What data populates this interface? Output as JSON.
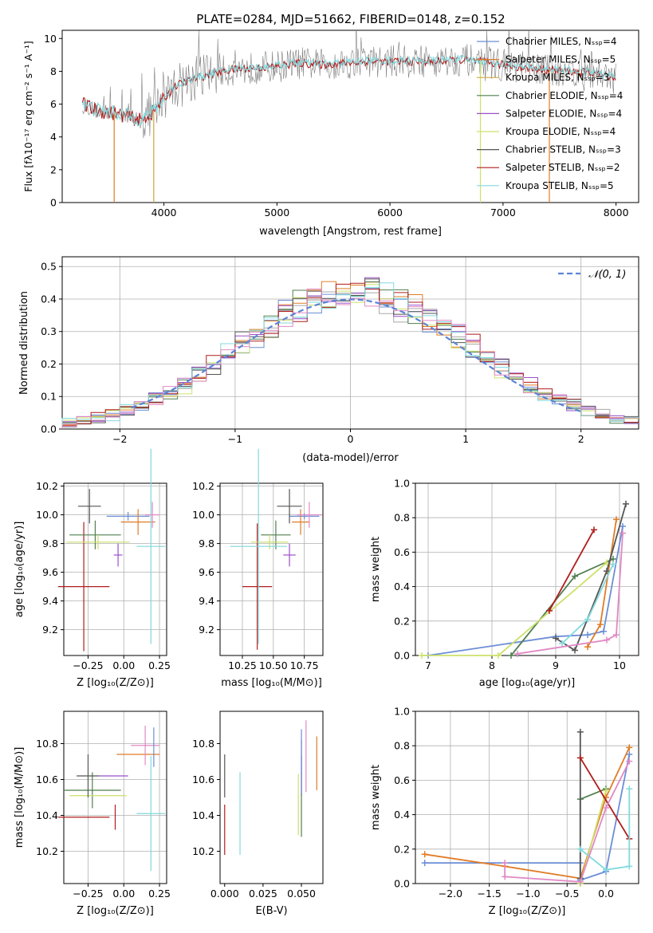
{
  "figure": {
    "title": "PLATE=0284, MJD=51662, FIBERID=0148, z=0.152",
    "series_colors": [
      "#6b8ed6",
      "#e07c26",
      "#a8a8a8",
      "#4f7f4f",
      "#9b4fc9",
      "#cde06a",
      "#555555",
      "#b01c1c",
      "#80d9dd"
    ],
    "pink_color": "#e089c4"
  },
  "chart_data": [
    {
      "type": "line",
      "title": "PLATE=0284, MJD=51662, FIBERID=0148, z=0.152",
      "xlabel": "wavelength [Angstrom, rest frame]",
      "ylabel": "Flux [f_λ 10^-17 erg cm^-2 s^-1 A^-1]",
      "xlim": [
        3100,
        8200
      ],
      "ylim": [
        0,
        10.5
      ],
      "xticks": [
        4000,
        5000,
        6000,
        7000,
        8000
      ],
      "yticks": [
        0,
        2,
        4,
        6,
        8,
        10
      ],
      "legend_position": "top-right",
      "series": [
        {
          "name": "Chabrier MILES, N_SSP=4",
          "color": "#6b8ed6"
        },
        {
          "name": "Salpeter MILES, N_SSP=5",
          "color": "#e07c26"
        },
        {
          "name": "Kroupa MILES, N_SSP=3",
          "color": "#cda63b"
        },
        {
          "name": "Chabrier ELODIE, N_SSP=4",
          "color": "#4f7f4f"
        },
        {
          "name": "Salpeter ELODIE, N_SSP=4",
          "color": "#9b4fc9"
        },
        {
          "name": "Kroupa ELODIE, N_SSP=4",
          "color": "#cde06a"
        },
        {
          "name": "Chabrier STELIB, N_SSP=3",
          "color": "#555555"
        },
        {
          "name": "Salpeter STELIB, N_SSP=2",
          "color": "#b01c1c"
        },
        {
          "name": "Kroupa STELIB, N_SSP=5",
          "color": "#80d9dd"
        }
      ],
      "continuum": {
        "x": [
          3280,
          3400,
          3500,
          3600,
          3700,
          3800,
          3900,
          4000,
          4100,
          4200,
          4400,
          4600,
          4800,
          5000,
          5200,
          5400,
          5600,
          5800,
          6000,
          6200,
          6400,
          6600,
          6800,
          7000,
          7200,
          7400,
          7600,
          7800,
          8000
        ],
        "y": [
          6.0,
          5.6,
          5.5,
          5.4,
          5.2,
          5.0,
          5.5,
          6.3,
          7.1,
          7.4,
          7.8,
          8.1,
          8.2,
          8.3,
          8.5,
          8.4,
          8.5,
          8.6,
          8.6,
          8.6,
          8.6,
          8.7,
          8.6,
          8.4,
          8.2,
          8.1,
          8.0,
          7.9,
          7.6
        ]
      }
    },
    {
      "type": "line",
      "xlabel": "(data-model)/error",
      "ylabel": "Normed distribution",
      "xlim": [
        -2.5,
        2.5
      ],
      "ylim": [
        0,
        0.53
      ],
      "xticks": [
        -2,
        -1,
        0,
        1,
        2
      ],
      "yticks": [
        0.0,
        0.1,
        0.2,
        0.3,
        0.4,
        0.5
      ],
      "grid": true,
      "legend": "𝒩(0, 1)",
      "legend_position": "top-right",
      "histogram_bins": 40,
      "gaussian_color": "#5b84d6"
    },
    {
      "type": "scatter",
      "xlabel": "Z [log10(Z/Z⊙)]",
      "ylabel": "age [log10(age/yr)]",
      "xlim": [
        -0.42,
        0.3
      ],
      "ylim": [
        9.02,
        10.22
      ],
      "xticks": [
        -0.25,
        0.0,
        0.25
      ],
      "xtick_labels": [
        "−0.25",
        "0.00",
        "0.25"
      ],
      "yticks": [
        9.2,
        9.4,
        9.6,
        9.8,
        10.0,
        10.2
      ],
      "ytick_labels": [
        "9.2",
        "9.4",
        "9.6",
        "9.8",
        "10.0",
        "10.2"
      ],
      "grid": true,
      "points": [
        {
          "x": -0.28,
          "y": 9.5,
          "xerr": 0.18,
          "yerr": 0.45,
          "c": 7
        },
        {
          "x": -0.2,
          "y": 9.86,
          "xerr": 0.18,
          "yerr": 0.1,
          "c": 3
        },
        {
          "x": -0.18,
          "y": 9.81,
          "xerr": 0.22,
          "yerr": 0.05,
          "c": 5
        },
        {
          "x": -0.04,
          "y": 9.72,
          "xerr": 0.03,
          "yerr": 0.08,
          "c": 4
        },
        {
          "x": 0.03,
          "y": 9.99,
          "xerr": 0.15,
          "yerr": 0.03,
          "c": 0
        },
        {
          "x": -0.24,
          "y": 10.06,
          "xerr": 0.08,
          "yerr": 0.12,
          "c": 6
        },
        {
          "x": 0.1,
          "y": 9.95,
          "xerr": 0.12,
          "yerr": 0.09,
          "c": 1
        },
        {
          "x": 0.19,
          "y": 9.78,
          "xerr": 0.1,
          "yerr": 0.68,
          "c": 8
        },
        {
          "x": 0.2,
          "y": 10.0,
          "xerr": 0.05,
          "yerr": 0.09,
          "c": 9
        }
      ]
    },
    {
      "type": "scatter",
      "xlabel": "mass [log10(M/M⊙)]",
      "xlim": [
        10.07,
        10.9
      ],
      "ylim": [
        9.02,
        10.22
      ],
      "xticks": [
        10.25,
        10.5,
        10.75
      ],
      "xtick_labels": [
        "10.25",
        "10.50",
        "10.75"
      ],
      "yticks": [
        9.2,
        9.4,
        9.6,
        9.8,
        10.0,
        10.2
      ],
      "ytick_labels": [
        "9.2",
        "9.4",
        "9.6",
        "9.8",
        "10.0",
        "10.2"
      ],
      "grid": true,
      "points": [
        {
          "x": 10.37,
          "y": 9.5,
          "xerr": 0.12,
          "yerr": 0.44,
          "c": 7
        },
        {
          "x": 10.52,
          "y": 9.86,
          "xerr": 0.12,
          "yerr": 0.1,
          "c": 3
        },
        {
          "x": 10.47,
          "y": 9.81,
          "xerr": 0.15,
          "yerr": 0.05,
          "c": 5
        },
        {
          "x": 10.63,
          "y": 9.72,
          "xerr": 0.05,
          "yerr": 0.08,
          "c": 4
        },
        {
          "x": 10.75,
          "y": 9.99,
          "xerr": 0.12,
          "yerr": 0.02,
          "c": 0
        },
        {
          "x": 10.63,
          "y": 10.06,
          "xerr": 0.1,
          "yerr": 0.12,
          "c": 6
        },
        {
          "x": 10.72,
          "y": 9.95,
          "xerr": 0.07,
          "yerr": 0.09,
          "c": 1
        },
        {
          "x": 10.38,
          "y": 9.78,
          "xerr": 0.23,
          "yerr": 0.68,
          "c": 8
        },
        {
          "x": 10.79,
          "y": 10.0,
          "xerr": 0.1,
          "yerr": 0.09,
          "c": 9
        }
      ]
    },
    {
      "type": "line",
      "xlabel": "age [log10(age/yr)]",
      "ylabel": "mass weight",
      "xlim": [
        6.8,
        10.3
      ],
      "ylim": [
        0,
        1.0
      ],
      "xticks": [
        7,
        8,
        9,
        10
      ],
      "xtick_labels": [
        "7",
        "8",
        "9",
        "10"
      ],
      "yticks": [
        0.0,
        0.2,
        0.4,
        0.6,
        0.8,
        1.0
      ],
      "ytick_labels": [
        "0.0",
        "0.2",
        "0.4",
        "0.6",
        "0.8",
        "1.0"
      ],
      "grid": true,
      "series": [
        {
          "c": 0,
          "points": [
            [
              7.0,
              0.0
            ],
            [
              9.0,
              0.11
            ],
            [
              9.5,
              0.12
            ],
            [
              9.75,
              0.14
            ],
            [
              10.05,
              0.75
            ]
          ]
        },
        {
          "c": 1,
          "points": [
            [
              9.5,
              0.05
            ],
            [
              9.7,
              0.18
            ],
            [
              9.95,
              0.79
            ]
          ]
        },
        {
          "c": 3,
          "points": [
            [
              8.3,
              0.0
            ],
            [
              9.3,
              0.46
            ],
            [
              9.9,
              0.56
            ]
          ]
        },
        {
          "c": 5,
          "points": [
            [
              6.9,
              0.0
            ],
            [
              8.1,
              0.0
            ],
            [
              9.8,
              0.54
            ]
          ]
        },
        {
          "c": 6,
          "points": [
            [
              9.0,
              0.1
            ],
            [
              9.3,
              0.03
            ],
            [
              9.8,
              0.49
            ],
            [
              10.1,
              0.88
            ]
          ]
        },
        {
          "c": 7,
          "points": [
            [
              8.9,
              0.26
            ],
            [
              9.6,
              0.73
            ]
          ]
        },
        {
          "c": 8,
          "points": [
            [
              9.1,
              0.07
            ],
            [
              9.5,
              0.21
            ],
            [
              9.9,
              0.53
            ]
          ]
        },
        {
          "c": 9,
          "points": [
            [
              8.4,
              0.01
            ],
            [
              9.8,
              0.09
            ],
            [
              9.95,
              0.12
            ],
            [
              10.05,
              0.71
            ]
          ]
        }
      ]
    },
    {
      "type": "scatter",
      "xlabel": "Z [log10(Z/Z⊙)]",
      "ylabel": "mass [log10(M/M⊙)]",
      "xlim": [
        -0.42,
        0.3
      ],
      "ylim": [
        10.02,
        10.98
      ],
      "xticks": [
        -0.25,
        0.0,
        0.25
      ],
      "xtick_labels": [
        "−0.25",
        "0.00",
        "0.25"
      ],
      "yticks": [
        10.2,
        10.4,
        10.6,
        10.8
      ],
      "ytick_labels": [
        "10.2",
        "10.4",
        "10.6",
        "10.8"
      ],
      "grid": true,
      "points": [
        {
          "x": -0.28,
          "y": 10.39,
          "xerr": 0.18,
          "yerr": 0.0,
          "c": 7
        },
        {
          "x": -0.06,
          "y": 10.39,
          "xerr": 0.0,
          "yerr": 0.07,
          "c": 7
        },
        {
          "x": -0.22,
          "y": 10.54,
          "xerr": 0.2,
          "yerr": 0.1,
          "c": 3
        },
        {
          "x": -0.18,
          "y": 10.51,
          "xerr": 0.2,
          "yerr": 0.0,
          "c": 5
        },
        {
          "x": -0.25,
          "y": 10.62,
          "xerr": 0.08,
          "yerr": 0.12,
          "c": 6
        },
        {
          "x": -0.07,
          "y": 10.62,
          "xerr": 0.1,
          "yerr": 0.0,
          "c": 4
        },
        {
          "x": 0.1,
          "y": 10.74,
          "xerr": 0.15,
          "yerr": 0.0,
          "c": 1
        },
        {
          "x": 0.19,
          "y": 10.41,
          "xerr": 0.1,
          "yerr": 0.32,
          "c": 8
        },
        {
          "x": 0.15,
          "y": 10.79,
          "xerr": 0.1,
          "yerr": 0.11,
          "c": 9
        },
        {
          "x": 0.21,
          "y": 10.78,
          "xerr": 0.0,
          "yerr": 0.11,
          "c": 0
        }
      ]
    },
    {
      "type": "scatter",
      "xlabel": "E(B-V)",
      "xlim": [
        -0.003,
        0.064
      ],
      "ylim": [
        10.02,
        10.98
      ],
      "xticks": [
        0.0,
        0.025,
        0.05
      ],
      "xtick_labels": [
        "0.000",
        "0.025",
        "0.050"
      ],
      "yticks": [
        10.2,
        10.4,
        10.6,
        10.8
      ],
      "ytick_labels": [
        "10.2",
        "10.4",
        "10.6",
        "10.8"
      ],
      "grid": false,
      "points": [
        {
          "x": 0.0,
          "y": 10.32,
          "yerr": 0.14,
          "c": 7
        },
        {
          "x": 0.0,
          "y": 10.62,
          "yerr": 0.12,
          "c": 6
        },
        {
          "x": 0.01,
          "y": 10.41,
          "yerr": 0.23,
          "c": 8
        },
        {
          "x": 0.048,
          "y": 10.46,
          "yerr": 0.17,
          "c": 5
        },
        {
          "x": 0.05,
          "y": 10.62,
          "yerr": 0.11,
          "c": 4
        },
        {
          "x": 0.05,
          "y": 10.55,
          "yerr": 0.27,
          "c": 3
        },
        {
          "x": 0.05,
          "y": 10.7,
          "yerr": 0.18,
          "c": 0
        },
        {
          "x": 0.053,
          "y": 10.73,
          "yerr": 0.2,
          "c": 9
        },
        {
          "x": 0.06,
          "y": 10.69,
          "yerr": 0.15,
          "c": 1
        }
      ]
    },
    {
      "type": "line",
      "xlabel": "Z [log10(Z/Z⊙)]",
      "ylabel": "mass weight",
      "xlim": [
        -2.45,
        0.42
      ],
      "ylim": [
        0,
        1.0
      ],
      "xticks": [
        -2.0,
        -1.5,
        -1.0,
        -0.5,
        0.0
      ],
      "xtick_labels": [
        "−2.0",
        "−1.5",
        "−1.0",
        "−0.5",
        "0.0"
      ],
      "yticks": [
        0.0,
        0.2,
        0.4,
        0.6,
        0.8,
        1.0
      ],
      "ytick_labels": [
        "0.0",
        "0.2",
        "0.4",
        "0.6",
        "0.8",
        "1.0"
      ],
      "grid": true,
      "series": [
        {
          "c": 0,
          "points": [
            [
              -2.33,
              0.12
            ],
            [
              -0.33,
              0.12
            ],
            [
              -0.33,
              0.02
            ],
            [
              0.0,
              0.07
            ],
            [
              0.3,
              0.75
            ]
          ]
        },
        {
          "c": 1,
          "points": [
            [
              -2.33,
              0.17
            ],
            [
              -1.3,
              0.1
            ],
            [
              -0.33,
              0.03
            ],
            [
              0.0,
              0.5
            ],
            [
              0.3,
              0.79
            ]
          ]
        },
        {
          "c": 3,
          "points": [
            [
              -0.33,
              0.0
            ],
            [
              -0.33,
              0.49
            ],
            [
              0.0,
              0.55
            ]
          ]
        },
        {
          "c": 5,
          "points": [
            [
              -0.33,
              0.0
            ],
            [
              0.0,
              0.54
            ]
          ]
        },
        {
          "c": 6,
          "points": [
            [
              -0.33,
              0.03
            ],
            [
              -0.33,
              0.88
            ]
          ]
        },
        {
          "c": 7,
          "points": [
            [
              -0.33,
              0.73
            ],
            [
              0.3,
              0.26
            ]
          ]
        },
        {
          "c": 8,
          "points": [
            [
              -0.33,
              0.2
            ],
            [
              0.0,
              0.08
            ],
            [
              0.3,
              0.1
            ],
            [
              0.3,
              0.55
            ]
          ]
        },
        {
          "c": 9,
          "points": [
            [
              -1.3,
              0.12
            ],
            [
              -1.3,
              0.04
            ],
            [
              -0.33,
              0.01
            ],
            [
              0.0,
              0.44
            ],
            [
              0.3,
              0.71
            ]
          ]
        }
      ]
    }
  ]
}
